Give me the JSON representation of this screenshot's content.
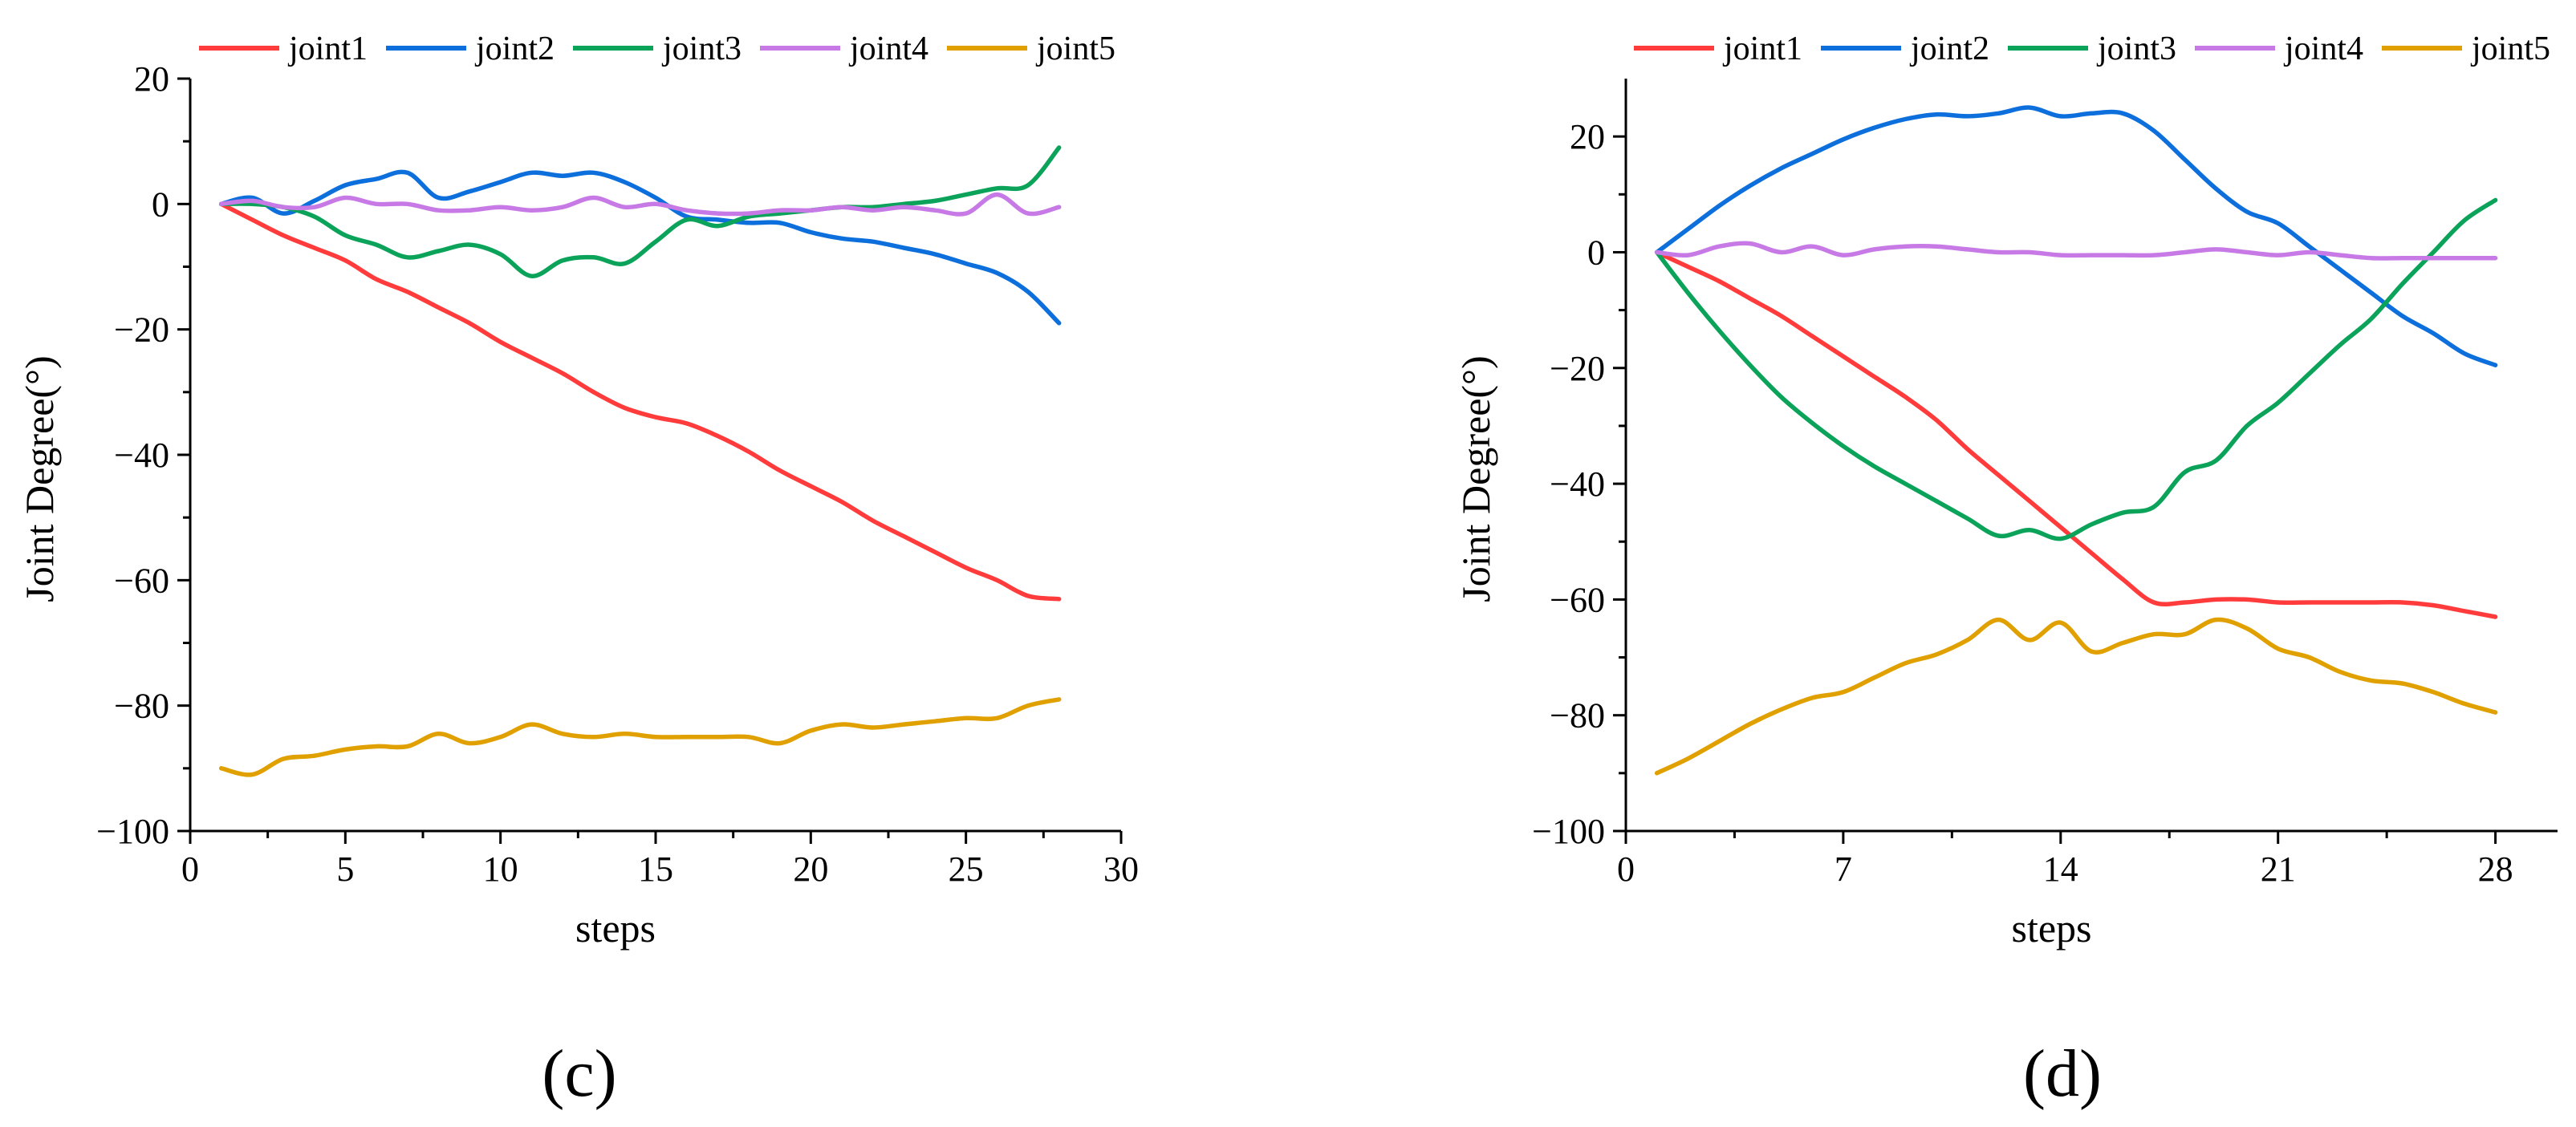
{
  "colors": {
    "joint1": "#ff3b3b",
    "joint2": "#0d6fdc",
    "joint3": "#0ba35a",
    "joint4": "#c77ae6",
    "joint5": "#e0a000"
  },
  "panel_labels": {
    "c": "(c)",
    "d": "(d)"
  },
  "chart_data": [
    {
      "type": "line",
      "panel": "(c)",
      "xlabel": "steps",
      "ylabel": "Joint Degree(°)",
      "xlim": [
        0,
        30
      ],
      "ylim": [
        -100,
        20
      ],
      "xticks": [
        0,
        5,
        10,
        15,
        20,
        25,
        30
      ],
      "yticks": [
        20,
        0,
        -20,
        -40,
        -60,
        -80,
        -100
      ],
      "legend": "top",
      "x": [
        1,
        2,
        3,
        4,
        5,
        6,
        7,
        8,
        9,
        10,
        11,
        12,
        13,
        14,
        15,
        16,
        17,
        18,
        19,
        20,
        21,
        22,
        23,
        24,
        25,
        26,
        27,
        28
      ],
      "series": [
        {
          "name": "joint1",
          "values": [
            0,
            -2.5,
            -5,
            -7,
            -9,
            -12,
            -14,
            -16.5,
            -19,
            -22,
            -24.5,
            -27,
            -30,
            -32.5,
            -34,
            -35,
            -37,
            -39.5,
            -42.5,
            -45,
            -47.5,
            -50.5,
            -53,
            -55.5,
            -58,
            -60,
            -62.5,
            -63
          ]
        },
        {
          "name": "joint2",
          "values": [
            0,
            1,
            -1.5,
            0.5,
            3,
            4,
            5,
            1,
            2,
            3.5,
            5,
            4.5,
            5,
            3.5,
            1,
            -2,
            -2.5,
            -3,
            -3,
            -4.5,
            -5.5,
            -6,
            -7,
            -8,
            -9.5,
            -11,
            -14,
            -19
          ]
        },
        {
          "name": "joint3",
          "values": [
            0,
            0,
            -0.5,
            -2,
            -5,
            -6.5,
            -8.5,
            -7.5,
            -6.5,
            -8,
            -11.5,
            -9,
            -8.5,
            -9.5,
            -6,
            -2.5,
            -3.5,
            -2,
            -1.5,
            -1,
            -0.5,
            -0.5,
            0,
            0.5,
            1.5,
            2.5,
            3,
            9
          ]
        },
        {
          "name": "joint4",
          "values": [
            0,
            0.5,
            -0.5,
            -0.5,
            1,
            0,
            0,
            -1,
            -1,
            -0.5,
            -1,
            -0.5,
            1,
            -0.5,
            0,
            -1,
            -1.5,
            -1.5,
            -1,
            -1,
            -0.5,
            -1,
            -0.5,
            -1,
            -1.5,
            1.5,
            -1.5,
            -0.5
          ]
        },
        {
          "name": "joint5",
          "values": [
            -90,
            -91,
            -88.5,
            -88,
            -87,
            -86.5,
            -86.5,
            -84.5,
            -86,
            -85,
            -83,
            -84.5,
            -85,
            -84.5,
            -85,
            -85,
            -85,
            -85,
            -86,
            -84,
            -83,
            -83.5,
            -83,
            -82.5,
            -82,
            -82,
            -80,
            -79
          ]
        }
      ]
    },
    {
      "type": "line",
      "panel": "(d)",
      "xlabel": "steps",
      "ylabel": "Joint Degree(°)",
      "xlim": [
        0,
        30
      ],
      "ylim": [
        -100,
        30
      ],
      "xticks": [
        0,
        7,
        14,
        21,
        28
      ],
      "yticks": [
        20,
        0,
        -20,
        -40,
        -60,
        -80,
        -100
      ],
      "legend": "top",
      "x": [
        1,
        2,
        3,
        4,
        5,
        6,
        7,
        8,
        9,
        10,
        11,
        12,
        13,
        14,
        15,
        16,
        17,
        18,
        19,
        20,
        21,
        22,
        23,
        24,
        25,
        26,
        27,
        28
      ],
      "series": [
        {
          "name": "joint1",
          "values": [
            0,
            -2.5,
            -5,
            -8,
            -11,
            -14.5,
            -18,
            -21.5,
            -25,
            -29,
            -34,
            -38.5,
            -43,
            -47.5,
            -52,
            -56.5,
            -60.5,
            -60.5,
            -60,
            -60,
            -60.5,
            -60.5,
            -60.5,
            -60.5,
            -60.5,
            -61,
            -62,
            -63
          ]
        },
        {
          "name": "joint2",
          "values": [
            0,
            4,
            8,
            11.5,
            14.5,
            17,
            19.5,
            21.5,
            23,
            23.8,
            23.5,
            24,
            25,
            23.5,
            24,
            24,
            21,
            16,
            11,
            7,
            5,
            1,
            -3,
            -7,
            -11,
            -14,
            -17.5,
            -19.5
          ]
        },
        {
          "name": "joint3",
          "values": [
            0,
            -7,
            -13.5,
            -19.5,
            -25,
            -29.5,
            -33.5,
            -37,
            -40,
            -43,
            -46,
            -49,
            -48,
            -49.5,
            -47,
            -45,
            -44,
            -38,
            -36,
            -30,
            -26,
            -21,
            -16,
            -11.5,
            -5.5,
            0,
            5.5,
            9
          ]
        },
        {
          "name": "joint4",
          "values": [
            0,
            -0.5,
            1,
            1.5,
            0,
            1,
            -0.5,
            0.5,
            1,
            1,
            0.5,
            0,
            0,
            -0.5,
            -0.5,
            -0.5,
            -0.5,
            0,
            0.5,
            0,
            -0.5,
            0,
            -0.5,
            -1,
            -1,
            -1,
            -1,
            -1
          ]
        },
        {
          "name": "joint5",
          "values": [
            -90,
            -87.5,
            -84.5,
            -81.5,
            -79,
            -77,
            -76,
            -73.5,
            -71,
            -69.5,
            -67,
            -63.5,
            -67,
            -64,
            -69,
            -67.5,
            -66,
            -66,
            -63.5,
            -65,
            -68.5,
            -70,
            -72.5,
            -74,
            -74.5,
            -76,
            -78,
            -79.5
          ]
        }
      ]
    }
  ]
}
